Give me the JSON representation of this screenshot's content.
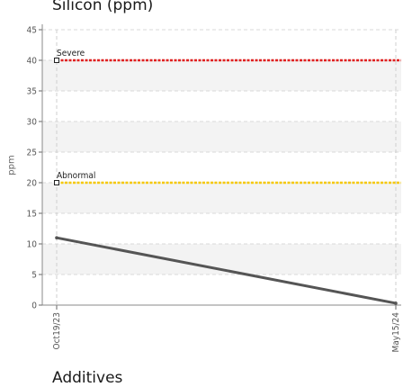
{
  "chart_data": {
    "type": "line",
    "title": "Silicon (ppm)",
    "ylabel": "ppm",
    "ylim": [
      0,
      45
    ],
    "yticks": [
      0,
      5,
      10,
      15,
      20,
      25,
      30,
      35,
      40,
      45
    ],
    "x": [
      "Oct19/23",
      "May15/24"
    ],
    "series": [
      {
        "values": [
          11,
          0.3
        ],
        "color": "#555555"
      }
    ],
    "thresholds": [
      {
        "label": "Severe",
        "value": 40,
        "color": "#e02020"
      },
      {
        "label": "Abnormal",
        "value": 20,
        "color": "#f5c800"
      }
    ],
    "grid": true
  },
  "next_section": {
    "title": "Additives"
  }
}
